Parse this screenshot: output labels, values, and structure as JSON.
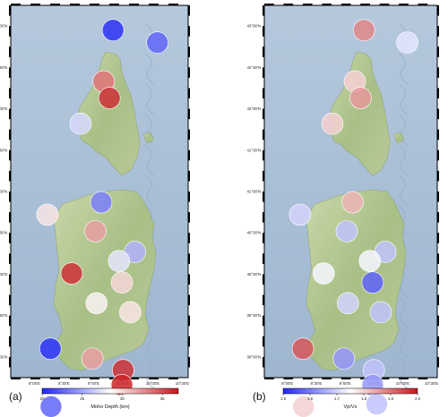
{
  "panels": [
    {
      "id": "a",
      "letter": "(a)",
      "colorbar": {
        "title": "Moho Depth (km)",
        "ticks": [
          "20",
          "25",
          "30",
          "35"
        ],
        "min": 20,
        "max": 37,
        "colors": [
          "#1f26f5",
          "#ffffff",
          "#c8161b"
        ]
      },
      "lat_ticks": [
        "43°00'N",
        "42°30'N",
        "42°00'N",
        "41°30'N",
        "41°00'N",
        "40°30'N",
        "40°00'N",
        "39°30'N",
        "39°00'N"
      ],
      "lon_ticks": [
        "8°00'E",
        "8°30'E",
        "9°00'E",
        "9°30'E",
        "10°00'E",
        "10°30'E"
      ],
      "stations": [
        {
          "lon": 9.33,
          "lat": 42.95,
          "value": 20.5
        },
        {
          "lon": 10.08,
          "lat": 42.8,
          "value": 22.5
        },
        {
          "lon": 9.17,
          "lat": 42.33,
          "value": 33.5
        },
        {
          "lon": 9.27,
          "lat": 42.13,
          "value": 36.0
        },
        {
          "lon": 8.78,
          "lat": 41.82,
          "value": 27.0
        },
        {
          "lon": 9.13,
          "lat": 40.87,
          "value": 23.5
        },
        {
          "lon": 8.22,
          "lat": 40.72,
          "value": 29.5
        },
        {
          "lon": 9.03,
          "lat": 40.52,
          "value": 32.0
        },
        {
          "lon": 9.7,
          "lat": 40.27,
          "value": 25.5
        },
        {
          "lon": 9.43,
          "lat": 40.16,
          "value": 27.5
        },
        {
          "lon": 8.63,
          "lat": 40.01,
          "value": 36.0
        },
        {
          "lon": 9.48,
          "lat": 39.9,
          "value": 30.0
        },
        {
          "lon": 9.05,
          "lat": 39.65,
          "value": 29.0
        },
        {
          "lon": 9.62,
          "lat": 39.54,
          "value": 29.5
        },
        {
          "lon": 8.27,
          "lat": 39.1,
          "value": 20.5
        },
        {
          "lon": 8.98,
          "lat": 38.98,
          "value": 32.0
        },
        {
          "lon": 9.5,
          "lat": 38.84,
          "value": 36.0
        },
        {
          "lon": 9.48,
          "lat": 38.66,
          "value": 36.5
        },
        {
          "lon": 8.28,
          "lat": 38.4,
          "value": 22.5
        },
        {
          "lon": 9.55,
          "lat": 38.43,
          "value": 28.5
        }
      ]
    },
    {
      "id": "b",
      "letter": "(b)",
      "colorbar": {
        "title": "Vp/Vs",
        "ticks": [
          "1.5",
          "1.6",
          "1.7",
          "1.8",
          "1.9",
          "2.0"
        ],
        "min": 1.5,
        "max": 2.0,
        "colors": [
          "#1f26f5",
          "#ffffff",
          "#c8161b"
        ]
      },
      "lat_ticks": [
        "43°00'N",
        "42°30'N",
        "42°00'N",
        "41°30'N",
        "41°00'N",
        "40°30'N",
        "40°00'N",
        "39°30'N",
        "39°00'N"
      ],
      "lon_ticks": [
        "8°00'E",
        "8°30'E",
        "9°00'E",
        "9°30'E",
        "10°00'E",
        "10°30'E"
      ],
      "stations": [
        {
          "lon": 9.33,
          "lat": 42.95,
          "value": 1.88
        },
        {
          "lon": 10.08,
          "lat": 42.8,
          "value": 1.72
        },
        {
          "lon": 9.17,
          "lat": 42.33,
          "value": 1.8
        },
        {
          "lon": 9.27,
          "lat": 42.13,
          "value": 1.86
        },
        {
          "lon": 8.78,
          "lat": 41.82,
          "value": 1.8
        },
        {
          "lon": 9.13,
          "lat": 40.87,
          "value": 1.83
        },
        {
          "lon": 8.22,
          "lat": 40.72,
          "value": 1.7
        },
        {
          "lon": 9.03,
          "lat": 40.52,
          "value": 1.68
        },
        {
          "lon": 9.7,
          "lat": 40.27,
          "value": 1.68
        },
        {
          "lon": 9.43,
          "lat": 40.16,
          "value": 1.74
        },
        {
          "lon": 8.63,
          "lat": 40.01,
          "value": 1.74
        },
        {
          "lon": 9.48,
          "lat": 39.9,
          "value": 1.57
        },
        {
          "lon": 9.05,
          "lat": 39.65,
          "value": 1.7
        },
        {
          "lon": 9.62,
          "lat": 39.54,
          "value": 1.68
        },
        {
          "lon": 8.27,
          "lat": 39.1,
          "value": 1.93
        },
        {
          "lon": 8.98,
          "lat": 38.98,
          "value": 1.63
        },
        {
          "lon": 9.5,
          "lat": 38.84,
          "value": 1.68
        },
        {
          "lon": 9.48,
          "lat": 38.66,
          "value": 1.63
        },
        {
          "lon": 8.28,
          "lat": 38.4,
          "value": 1.8
        },
        {
          "lon": 9.55,
          "lat": 38.43,
          "value": 1.68
        }
      ]
    }
  ]
}
